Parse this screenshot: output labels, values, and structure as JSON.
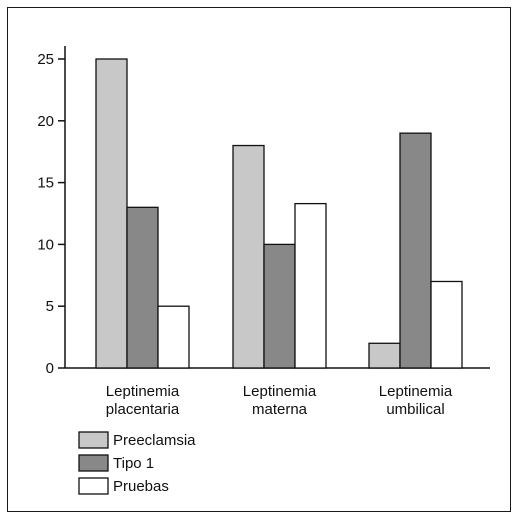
{
  "chart_data": {
    "type": "bar",
    "categories": [
      [
        "Leptinemia",
        "placentaria"
      ],
      [
        "Leptinemia",
        "materna"
      ],
      [
        "Leptinemia",
        "umbilical"
      ]
    ],
    "series": [
      {
        "name": "Preeclamsia",
        "values": [
          25,
          18,
          2
        ],
        "color": "#c8c8c8"
      },
      {
        "name": "Tipo 1",
        "values": [
          13,
          10,
          19
        ],
        "color": "#888888"
      },
      {
        "name": "Pruebas",
        "values": [
          5,
          13.3,
          7
        ],
        "color": "#ffffff"
      }
    ],
    "ylim": [
      0,
      25
    ],
    "yticks": [
      0,
      5,
      10,
      15,
      20,
      25
    ],
    "legend_position": "bottom-left",
    "grid": false
  }
}
